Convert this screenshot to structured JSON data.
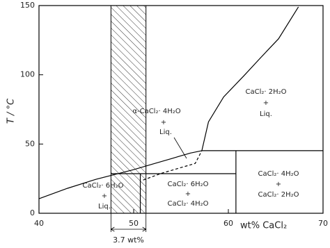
{
  "chart_data": {
    "type": "line",
    "xlabel": "wt% CaCl₂",
    "ylabel": "T / °C",
    "xlim": [
      40,
      70
    ],
    "ylim": [
      0,
      150
    ],
    "xticks": [
      40,
      50,
      60,
      70
    ],
    "yticks": [
      0,
      50,
      100,
      150
    ],
    "hatch_x": [
      47.6,
      51.3
    ],
    "hatch_label": "3.7 wt%",
    "series": [
      {
        "color": "#000",
        "dash": false,
        "x": [
          40,
          43,
          46,
          48,
          50,
          52,
          54,
          56,
          57.2
        ],
        "values": [
          10.5,
          18,
          24.5,
          28,
          31.5,
          35.5,
          39.5,
          43.5,
          45.2
        ]
      },
      {
        "color": "#000",
        "dash": true,
        "x": [
          51,
          53,
          55,
          56.5,
          57.2
        ],
        "values": [
          24,
          29,
          33,
          36,
          45.2
        ]
      },
      {
        "color": "#000",
        "dash": false,
        "x": [
          57.2,
          57.9,
          59.5,
          61.6,
          63.5,
          65.3,
          67.4
        ],
        "values": [
          45.2,
          66,
          84,
          99,
          113,
          126,
          149
        ]
      },
      {
        "color": "#000",
        "dash": false,
        "x": [
          57.2,
          70
        ],
        "values": [
          45.2,
          45.2
        ]
      },
      {
        "color": "#000",
        "dash": false,
        "x": [
          47.6,
          60.8
        ],
        "values": [
          28.6,
          28.6
        ]
      },
      {
        "color": "#000",
        "dash": false,
        "x": [
          60.8,
          60.8
        ],
        "values": [
          0,
          45.2
        ]
      },
      {
        "color": "#000",
        "dash": false,
        "x": [
          50.7,
          50.7
        ],
        "values": [
          0,
          28.6
        ]
      }
    ],
    "labels": [
      [
        "CaCl₂· 2H₂O",
        "+",
        "Liq."
      ],
      [
        "α-CaCl₂· 4H₂O",
        "+",
        "Liq."
      ],
      [
        "CaCl₂· 6H₂O",
        "+",
        "Liq."
      ],
      [
        "CaCl₂· 6H₂O",
        "+",
        "CaCl₂· 4H₂O"
      ],
      [
        "CaCl₂· 4H₂O",
        "+",
        "CaCl₂· 2H₂O"
      ]
    ]
  }
}
